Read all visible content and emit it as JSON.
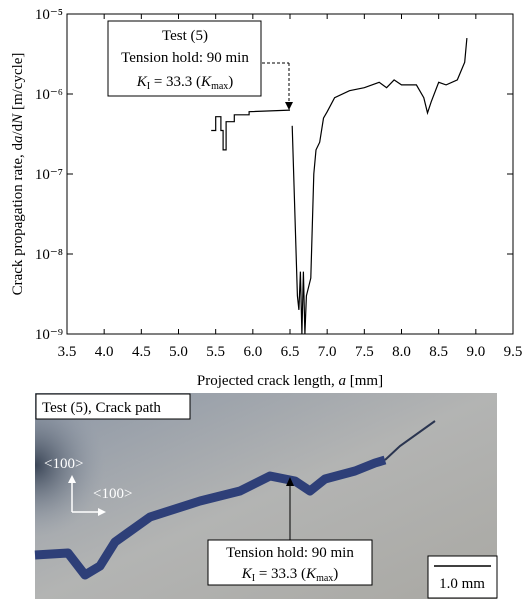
{
  "chart_data": {
    "type": "line",
    "y_label": [
      "Crack propagation rate, d",
      "a",
      "/d",
      "N",
      " [m/cycle]"
    ],
    "x_label": [
      "Projected crack length, ",
      "a",
      " [mm]"
    ],
    "xlim": [
      3.5,
      9.5
    ],
    "xticks": [
      3.5,
      {
        "value": 4,
        "label": "4.0"
      },
      4.5,
      {
        "value": 5,
        "label": "5.0"
      },
      5.5,
      {
        "value": 6,
        "label": "6.0"
      },
      6.5,
      {
        "value": 7,
        "label": "7.0"
      },
      7.5,
      {
        "value": 8,
        "label": "8.0"
      },
      8.5,
      {
        "value": 9,
        "label": "9.0"
      },
      9.5
    ],
    "ylim": [
      1e-09,
      1e-05
    ],
    "yscale": "log",
    "yticks": [
      {
        "value": 1e-09,
        "label": "10⁻⁹"
      },
      {
        "value": 1e-08,
        "label": "10⁻⁸"
      },
      {
        "value": 1e-07,
        "label": "10⁻⁷"
      },
      {
        "value": 1e-06,
        "label": "10⁻⁶"
      },
      {
        "value": 1e-05,
        "label": "10⁻⁵"
      }
    ],
    "x": [
      5.44,
      5.5,
      5.5,
      5.57,
      5.57,
      5.6,
      5.6,
      5.64,
      5.64,
      5.75,
      5.75,
      5.95,
      5.95,
      6.5,
      6.52,
      6.53,
      6.6,
      6.62,
      6.64,
      6.66,
      6.68,
      6.7,
      6.72,
      6.78,
      6.82,
      6.85,
      6.9,
      6.95,
      7.0,
      7.1,
      7.3,
      7.5,
      7.7,
      7.8,
      7.9,
      8.0,
      8.2,
      8.3,
      8.35,
      8.4,
      8.5,
      8.6,
      8.75,
      8.85,
      8.88
    ],
    "series": [
      {
        "color": "#000000",
        "values": [
          3.5e-07,
          3.5e-07,
          5.2e-07,
          5.2e-07,
          3.5e-07,
          3.5e-07,
          2e-07,
          2e-07,
          4.5e-07,
          4.5e-07,
          5.5e-07,
          5.5e-07,
          6e-07,
          6.3e-07,
          null,
          4e-07,
          3e-09,
          2e-09,
          6e-09,
          1e-09,
          6e-09,
          1e-09,
          3e-09,
          5e-09,
          1e-07,
          2e-07,
          2.5e-07,
          5e-07,
          6e-07,
          9e-07,
          1.1e-06,
          1.2e-06,
          1.4e-06,
          1.2e-06,
          1.5e-06,
          1.3e-06,
          1.3e-06,
          9e-07,
          5.8e-07,
          8e-07,
          1.4e-06,
          1.3e-06,
          1.5e-06,
          2.5e-06,
          5e-06
        ]
      }
    ],
    "annotation": {
      "lines": [
        "Test (5)",
        "Tension hold: 90 min"
      ],
      "k_line": [
        "K",
        "I",
        " = 33.3 (",
        "K",
        "max",
        ")"
      ]
    }
  },
  "photo": {
    "title": "Test (5), Crack path",
    "orientation_labels": [
      "<100>",
      "<100>"
    ],
    "annotation_line": "Tension hold: 90 min",
    "k_line": [
      "K",
      "I",
      " = 33.3 (",
      "K",
      "max",
      ")"
    ],
    "scale_bar": "1.0 mm"
  }
}
